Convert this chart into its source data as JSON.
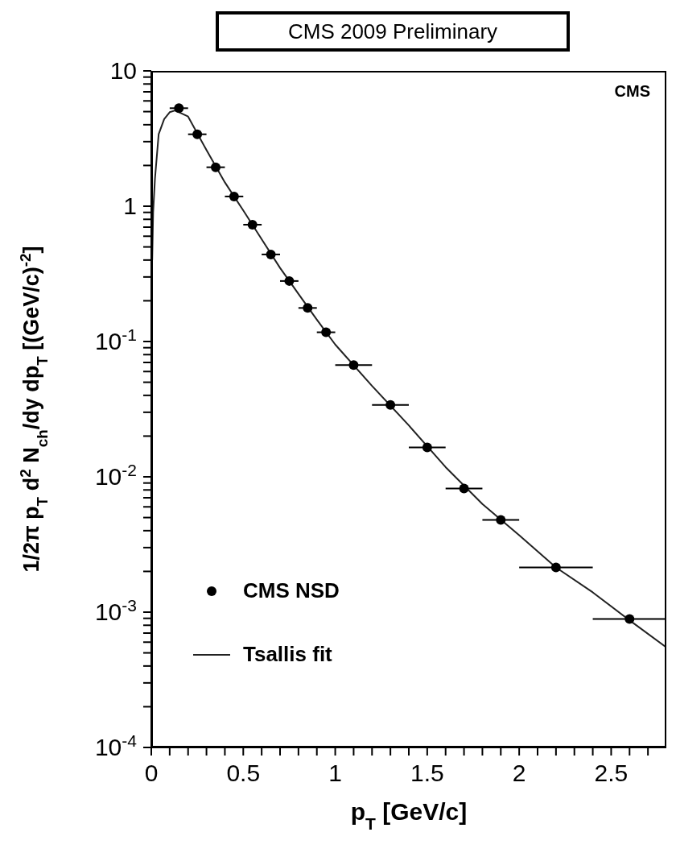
{
  "chart_data": {
    "type": "scatter",
    "title": "CMS 2009 Preliminary",
    "xlabel": "p$_{T}$ [GeV/c]",
    "ylabel": "1/2π p$_{T}$ d$^{2}$ N$_{ch}$/dy dp$_{T}$ [(GeV/c)$^{-2}$]",
    "annotations": [
      "CMS"
    ],
    "log": "y",
    "legend": "bottom left",
    "xlim": [
      0,
      2.8
    ],
    "xticks": [
      0,
      {
        "value": 0.1,
        "label": null
      },
      {
        "value": 0.2,
        "label": null
      },
      {
        "value": 0.3,
        "label": null
      },
      {
        "value": 0.4,
        "label": null
      },
      0.5,
      {
        "value": 0.6,
        "label": null
      },
      {
        "value": 0.7,
        "label": null
      },
      {
        "value": 0.8,
        "label": null
      },
      {
        "value": 0.9,
        "label": null
      },
      1,
      {
        "value": 1.1,
        "label": null
      },
      {
        "value": 1.2,
        "label": null
      },
      {
        "value": 1.3,
        "label": null
      },
      {
        "value": 1.4,
        "label": null
      },
      1.5,
      {
        "value": 1.6,
        "label": null
      },
      {
        "value": 1.7,
        "label": null
      },
      {
        "value": 1.8,
        "label": null
      },
      {
        "value": 1.9,
        "label": null
      },
      2,
      {
        "value": 2.1,
        "label": null
      },
      {
        "value": 2.2,
        "label": null
      },
      {
        "value": 2.3,
        "label": null
      },
      {
        "value": 2.4,
        "label": null
      },
      2.5,
      {
        "value": 2.6,
        "label": null
      },
      {
        "value": 2.7,
        "label": null
      }
    ],
    "ylim": [
      0.0001,
      10
    ],
    "yticks": [
      {
        "value": 0.0001,
        "label": "10$^{-4}$"
      },
      {
        "value": 0.0002,
        "label": null
      },
      {
        "value": 0.0003,
        "label": null
      },
      {
        "value": 0.0004,
        "label": null
      },
      {
        "value": 0.0005,
        "label": null
      },
      {
        "value": 0.0006,
        "label": null
      },
      {
        "value": 0.0007,
        "label": null
      },
      {
        "value": 0.0008,
        "label": null
      },
      {
        "value": 0.0009,
        "label": null
      },
      {
        "value": 0.001,
        "label": "10$^{-3}$"
      },
      {
        "value": 0.002,
        "label": null
      },
      {
        "value": 0.003,
        "label": null
      },
      {
        "value": 0.004,
        "label": null
      },
      {
        "value": 0.005,
        "label": null
      },
      {
        "value": 0.006,
        "label": null
      },
      {
        "value": 0.007,
        "label": null
      },
      {
        "value": 0.008,
        "label": null
      },
      {
        "value": 0.009,
        "label": null
      },
      {
        "value": 0.01,
        "label": "10$^{-2}$"
      },
      {
        "value": 0.02,
        "label": null
      },
      {
        "value": 0.03,
        "label": null
      },
      {
        "value": 0.04,
        "label": null
      },
      {
        "value": 0.05,
        "label": null
      },
      {
        "value": 0.06,
        "label": null
      },
      {
        "value": 0.07,
        "label": null
      },
      {
        "value": 0.08,
        "label": null
      },
      {
        "value": 0.09,
        "label": null
      },
      {
        "value": 0.1,
        "label": "10$^{-1}$"
      },
      {
        "value": 0.2,
        "label": null
      },
      {
        "value": 0.3,
        "label": null
      },
      {
        "value": 0.4,
        "label": null
      },
      {
        "value": 0.5,
        "label": null
      },
      {
        "value": 0.6,
        "label": null
      },
      {
        "value": 0.7,
        "label": null
      },
      {
        "value": 0.8,
        "label": null
      },
      {
        "value": 0.9,
        "label": null
      },
      1,
      {
        "value": 2,
        "label": null
      },
      {
        "value": 3,
        "label": null
      },
      {
        "value": 4,
        "label": null
      },
      {
        "value": 5,
        "label": null
      },
      {
        "value": 6,
        "label": null
      },
      {
        "value": 7,
        "label": null
      },
      {
        "value": 8,
        "label": null
      },
      {
        "value": 9,
        "label": null
      },
      10
    ],
    "series": [
      {
        "name": "CMS NSD",
        "marker": "circle",
        "color": "#000000",
        "x": [
          0.15,
          0.25,
          0.35,
          0.45,
          0.55,
          0.65,
          0.75,
          0.85,
          0.95,
          1.1,
          1.3,
          1.5,
          1.7,
          1.9,
          2.2,
          2.6
        ],
        "values": [
          5.3,
          3.4,
          1.94,
          1.18,
          0.73,
          0.44,
          0.28,
          0.177,
          0.117,
          0.067,
          0.034,
          0.0165,
          0.0082,
          0.0048,
          0.00214,
          0.00089
        ],
        "xerrors": [
          0.05,
          0.05,
          0.05,
          0.05,
          0.05,
          0.05,
          0.05,
          0.05,
          0.05,
          0.1,
          0.1,
          0.1,
          0.1,
          0.1,
          0.2,
          0.2
        ]
      },
      {
        "name": "Tsallis fit",
        "type": "line",
        "marker": "none",
        "line_style": "solid",
        "color": "#222222",
        "x": [
          0.005,
          0.01,
          0.02,
          0.04,
          0.07,
          0.1,
          0.13,
          0.2,
          0.3,
          0.4,
          0.5,
          0.6,
          0.7,
          0.8,
          0.9,
          1.0,
          1.2,
          1.4,
          1.6,
          1.8,
          2.0,
          2.2,
          2.4,
          2.6,
          2.8
        ],
        "values": [
          0.4,
          0.9,
          1.6,
          3.4,
          4.4,
          4.95,
          5.1,
          4.6,
          2.6,
          1.5,
          0.93,
          0.57,
          0.35,
          0.225,
          0.145,
          0.095,
          0.047,
          0.024,
          0.0118,
          0.0063,
          0.0037,
          0.00214,
          0.0014,
          0.00087,
          0.00055
        ]
      }
    ]
  }
}
